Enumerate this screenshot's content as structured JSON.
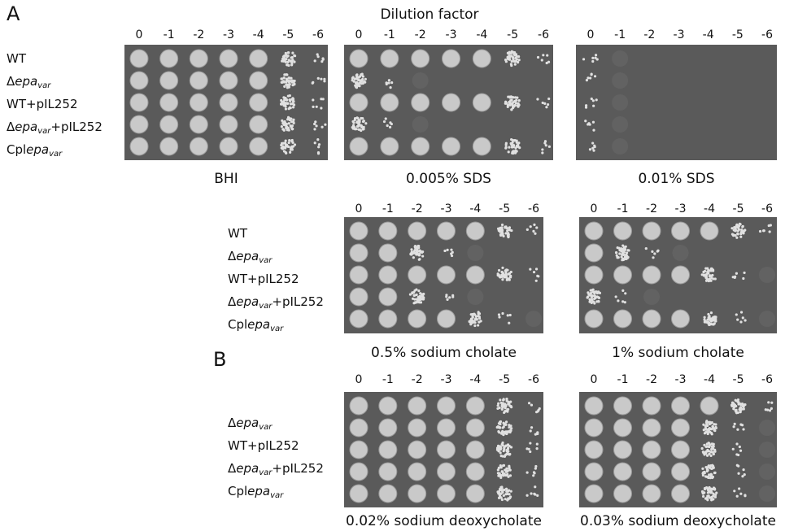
{
  "panel_labels": [
    "A",
    "B"
  ],
  "header": "Dilution factor",
  "strain_groups": [
    {
      "rows": [
        [
          {
            "text": "WT"
          }
        ],
        [
          {
            "text": "Δ"
          },
          {
            "text": "epa",
            "style": "italic"
          },
          {
            "text": "var",
            "style": "sub"
          }
        ],
        [
          {
            "text": "WT+pIL252"
          }
        ],
        [
          {
            "text": "Δ"
          },
          {
            "text": "epa",
            "style": "italic"
          },
          {
            "text": "var",
            "style": "sub"
          },
          {
            "text": "+pIL252"
          }
        ],
        [
          {
            "text": "Cpl"
          },
          {
            "text": "epa",
            "style": "italic"
          },
          {
            "text": "var",
            "style": "sub"
          }
        ]
      ]
    },
    {
      "rows": [
        [
          {
            "text": "WT"
          }
        ],
        [
          {
            "text": "Δ"
          },
          {
            "text": "epa",
            "style": "italic"
          },
          {
            "text": "var",
            "style": "sub"
          }
        ],
        [
          {
            "text": "WT+pIL252"
          }
        ],
        [
          {
            "text": "Δ"
          },
          {
            "text": "epa",
            "style": "italic"
          },
          {
            "text": "var",
            "style": "sub"
          },
          {
            "text": "+pIL252"
          }
        ],
        [
          {
            "text": "Cpl"
          },
          {
            "text": "epa",
            "style": "italic"
          },
          {
            "text": "var",
            "style": "sub"
          }
        ]
      ]
    },
    {
      "rows": [
        [
          {
            "text": "Δ"
          },
          {
            "text": "epa",
            "style": "italic"
          },
          {
            "text": "var",
            "style": "sub"
          }
        ],
        [
          {
            "text": "WT+pIL252"
          }
        ],
        [
          {
            "text": "Δ"
          },
          {
            "text": "epa",
            "style": "italic"
          },
          {
            "text": "var",
            "style": "sub"
          },
          {
            "text": "+pIL252"
          }
        ],
        [
          {
            "text": "Cpl"
          },
          {
            "text": "epa",
            "style": "italic"
          },
          {
            "text": "var",
            "style": "sub"
          }
        ]
      ]
    }
  ],
  "plates": [
    {
      "caption": "BHI",
      "dilutions": [
        "0",
        "-1",
        "-2",
        "-3",
        "-4",
        "-5",
        "-6"
      ]
    },
    {
      "caption": "0.005% SDS",
      "dilutions": [
        "0",
        "-1",
        "-2",
        "-3",
        "-4",
        "-5",
        "-6"
      ]
    },
    {
      "caption": "0.01% SDS",
      "dilutions": [
        "0",
        "-1",
        "-2",
        "-3",
        "-4",
        "-5",
        "-6"
      ]
    },
    {
      "caption": "0.5% sodium cholate",
      "dilutions": [
        "0",
        "-1",
        "-2",
        "-3",
        "-4",
        "-5",
        "-6"
      ]
    },
    {
      "caption": "1% sodium cholate",
      "dilutions": [
        "0",
        "-1",
        "-2",
        "-3",
        "-4",
        "-5",
        "-6"
      ]
    },
    {
      "caption": "0.02% sodium deoxycholate",
      "dilutions": [
        "0",
        "-1",
        "-2",
        "-3",
        "-4",
        "-5",
        "-6"
      ]
    },
    {
      "caption": "0.03% sodium deoxycholate",
      "dilutions": [
        "0",
        "-1",
        "-2",
        "-3",
        "-4",
        "-5",
        "-6"
      ]
    }
  ]
}
